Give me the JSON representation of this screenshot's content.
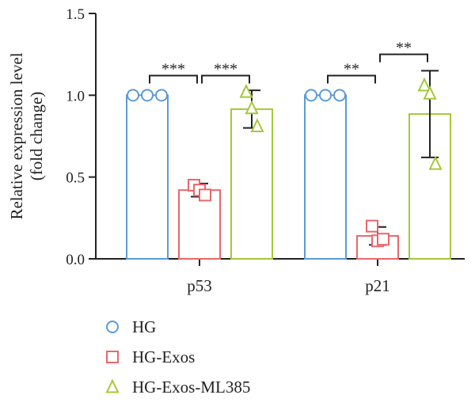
{
  "chart_data": {
    "type": "bar",
    "categories": [
      "p53",
      "p21"
    ],
    "ylabel": [
      "Relative expression level",
      "(fold change)"
    ],
    "ylim": [
      0,
      1.5
    ],
    "yticks": [
      "0.0",
      "0.5",
      "1.0",
      "1.5"
    ],
    "legend_position": "bottom-left",
    "series": [
      {
        "name": "HG",
        "color": "#5b9bd5",
        "marker": "circle",
        "values": [
          1.0,
          1.0
        ],
        "errors": [
          0,
          0
        ],
        "points": [
          [
            1.0,
            1.0,
            1.0
          ],
          [
            1.0,
            1.0,
            1.0
          ]
        ]
      },
      {
        "name": "HG-Exos",
        "color": "#e8676b",
        "marker": "square",
        "values": [
          0.42,
          0.14
        ],
        "errors": [
          0.04,
          0.055
        ],
        "points": [
          [
            0.45,
            0.42,
            0.39
          ],
          [
            0.2,
            0.11,
            0.12
          ]
        ]
      },
      {
        "name": "HG-Exos-ML385",
        "color": "#a5c83a",
        "marker": "triangle",
        "values": [
          0.915,
          0.885
        ],
        "errors": [
          0.115,
          0.265
        ],
        "points": [
          [
            1.02,
            0.92,
            0.81
          ],
          [
            1.06,
            1.01,
            0.58
          ]
        ]
      }
    ],
    "significance": [
      {
        "category": "p53",
        "from": 0,
        "to": 1,
        "label": "***",
        "y": 1.12
      },
      {
        "category": "p53",
        "from": 1,
        "to": 2,
        "label": "***",
        "y": 1.12
      },
      {
        "category": "p21",
        "from": 0,
        "to": 1,
        "label": "**",
        "y": 1.12
      },
      {
        "category": "p21",
        "from": 1,
        "to": 2,
        "label": "**",
        "y": 1.25
      }
    ]
  }
}
